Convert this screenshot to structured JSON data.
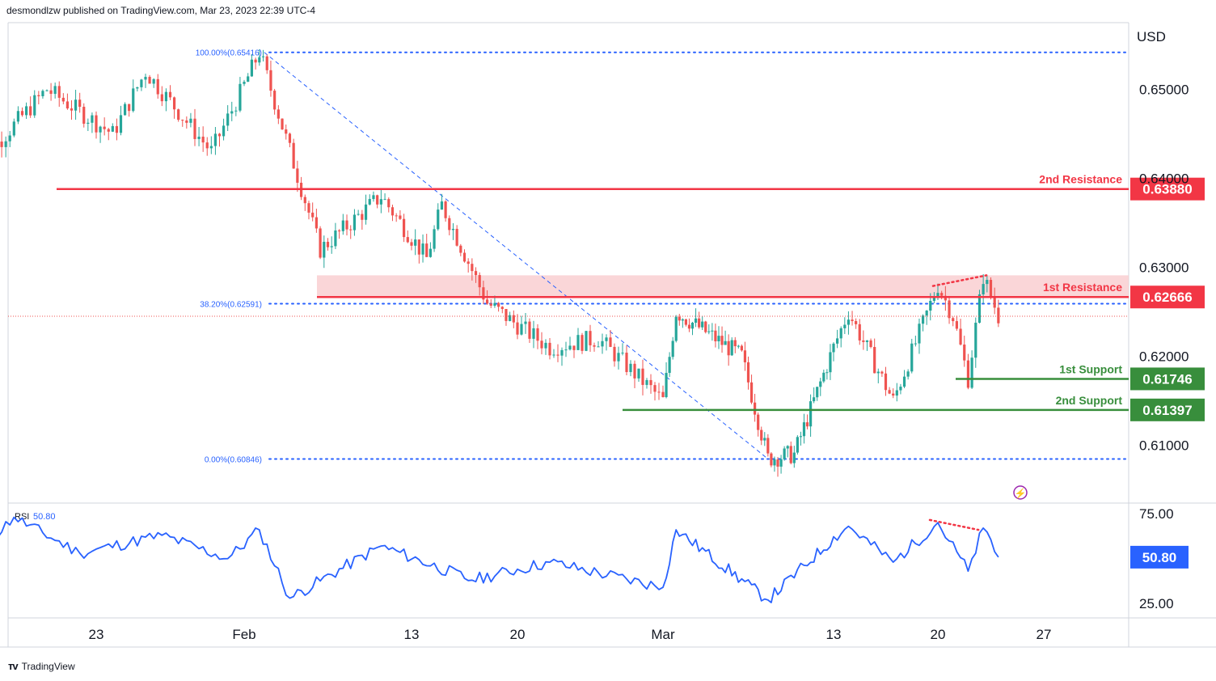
{
  "header": {
    "published_line": "desmondlzw published on TradingView.com, Mar 23, 2023 22:39 UTC-4"
  },
  "footer": {
    "brand": "TradingView",
    "logo_icon": "tradingview-logo-icon"
  },
  "colors": {
    "up": "#26a69a",
    "down": "#ef5350",
    "resistance": "#f23645",
    "support": "#388e3c",
    "fib": "#2962ff",
    "rsi": "#2962ff",
    "zone": "#f9cfd1",
    "text": "#131722",
    "axis_border": "#d1d4dc"
  },
  "chart_data": [
    {
      "type": "candlestick",
      "instrument_currency": "USD",
      "y_axis_ticks": [
        "0.65000",
        "0.64000",
        "0.63000",
        "0.62000",
        "0.61000"
      ],
      "ylim": [
        0.6035,
        0.6575
      ],
      "x_tick_labels": [
        "23",
        "Feb",
        "13",
        "20",
        "Mar",
        "13",
        "20",
        "27"
      ],
      "levels": [
        {
          "label": "2nd Resistance",
          "value": "0.63880",
          "v": 0.6388,
          "kind": "resistance"
        },
        {
          "label": "1st Resistance",
          "value": "0.62666",
          "v": 0.62666,
          "kind": "resistance"
        },
        {
          "label": "1st Support",
          "value": "0.61746",
          "v": 0.61746,
          "kind": "support"
        },
        {
          "label": "2nd Support",
          "value": "0.61397",
          "v": 0.61397,
          "kind": "support"
        }
      ],
      "fibonacci": [
        {
          "label": "100.00%(0.65416)",
          "v": 0.65416
        },
        {
          "label": "38.20%(0.62591)",
          "v": 0.62591
        },
        {
          "label": "0.00%(0.60846)",
          "v": 0.60846
        }
      ],
      "resistance_zone": {
        "from": 0.62666,
        "to": 0.6291
      },
      "last_price_line": 0.6245,
      "key_points": [
        {
          "date": "Jan 16",
          "price": 0.642
        },
        {
          "date": "Jan 20",
          "price": 0.65
        },
        {
          "date": "Jan 24",
          "price": 0.645
        },
        {
          "date": "Jan 26",
          "price": 0.652
        },
        {
          "date": "Jan 30",
          "price": 0.643
        },
        {
          "date": "Feb 2",
          "price": 0.6542
        },
        {
          "date": "Feb 6",
          "price": 0.632
        },
        {
          "date": "Feb 10",
          "price": 0.638
        },
        {
          "date": "Feb 13",
          "price": 0.631
        },
        {
          "date": "Feb 14",
          "price": 0.637
        },
        {
          "date": "Feb 17",
          "price": 0.626
        },
        {
          "date": "Feb 21",
          "price": 0.621
        },
        {
          "date": "Feb 24",
          "price": 0.622
        },
        {
          "date": "Feb 28",
          "price": 0.615
        },
        {
          "date": "Mar 1",
          "price": 0.625
        },
        {
          "date": "Mar 6",
          "price": 0.62
        },
        {
          "date": "Mar 8",
          "price": 0.6085
        },
        {
          "date": "Mar 10",
          "price": 0.609
        },
        {
          "date": "Mar 14",
          "price": 0.625
        },
        {
          "date": "Mar 17",
          "price": 0.615
        },
        {
          "date": "Mar 20",
          "price": 0.628
        },
        {
          "date": "Mar 21",
          "price": 0.6245
        },
        {
          "date": "Mar 22",
          "price": 0.6175
        },
        {
          "date": "Mar 23",
          "price": 0.629
        },
        {
          "date": "Mar 24",
          "price": 0.6245
        }
      ]
    },
    {
      "type": "line",
      "name": "RSI",
      "indicator_label": "RSI",
      "current_value": "50.80",
      "y_axis_ticks": [
        "75.00",
        "25.00"
      ],
      "ylim": [
        17,
        80
      ],
      "key_points": [
        {
          "date": "Jan 16",
          "value": 56
        },
        {
          "date": "Jan 18",
          "value": 73
        },
        {
          "date": "Jan 22",
          "value": 53
        },
        {
          "date": "Jan 27",
          "value": 63
        },
        {
          "date": "Jan 31",
          "value": 50
        },
        {
          "date": "Feb 2",
          "value": 66
        },
        {
          "date": "Feb 4",
          "value": 28
        },
        {
          "date": "Feb 10",
          "value": 57
        },
        {
          "date": "Feb 16",
          "value": 38
        },
        {
          "date": "Feb 21",
          "value": 48
        },
        {
          "date": "Feb 28",
          "value": 34
        },
        {
          "date": "Mar 1",
          "value": 66
        },
        {
          "date": "Mar 8",
          "value": 27
        },
        {
          "date": "Mar 14",
          "value": 68
        },
        {
          "date": "Mar 17",
          "value": 48
        },
        {
          "date": "Mar 20",
          "value": 70
        },
        {
          "date": "Mar 22",
          "value": 43
        },
        {
          "date": "Mar 23",
          "value": 67
        },
        {
          "date": "Mar 24",
          "value": 50.8
        }
      ]
    }
  ]
}
